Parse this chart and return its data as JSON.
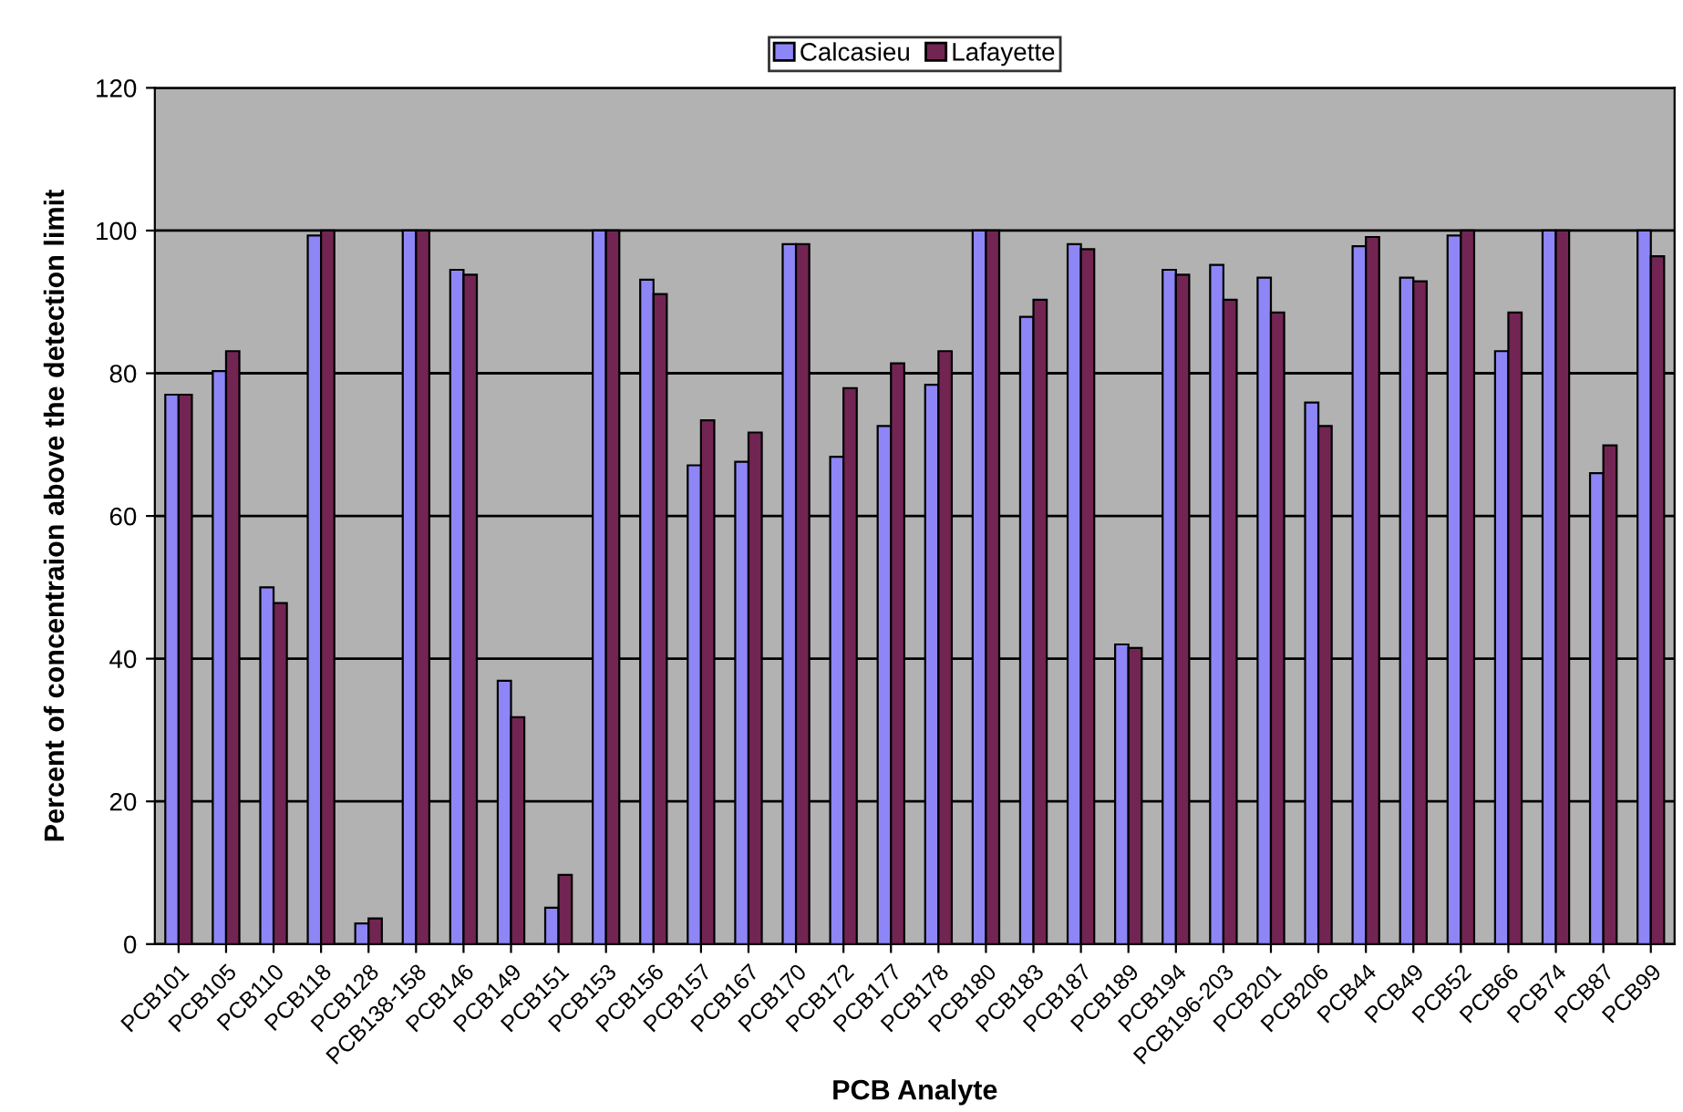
{
  "chart_data": {
    "type": "bar",
    "xlabel": "PCB Analyte",
    "ylabel": "Percent of concentraion above the detection limit",
    "categories": [
      "PCB101",
      "PCB105",
      "PCB110",
      "PCB118",
      "PCB128",
      "PCB138-158",
      "PCB146",
      "PCB149",
      "PCB151",
      "PCB153",
      "PCB156",
      "PCB157",
      "PCB167",
      "PCB170",
      "PCB172",
      "PCB177",
      "PCB178",
      "PCB180",
      "PCB183",
      "PCB187",
      "PCB189",
      "PCB194",
      "PCB196-203",
      "PCB201",
      "PCB206",
      "PCB44",
      "PCB49",
      "PCB52",
      "PCB66",
      "PCB74",
      "PCB87",
      "PCB99"
    ],
    "series": [
      {
        "name": "Calcasieu",
        "color": "#8e86f6",
        "values": [
          77.0,
          80.3,
          50.0,
          99.3,
          2.9,
          100,
          94.5,
          36.9,
          5.1,
          100,
          93.1,
          67.1,
          67.6,
          98.1,
          68.3,
          72.6,
          78.4,
          100,
          87.9,
          98.1,
          42.0,
          94.5,
          95.2,
          93.4,
          75.9,
          97.8,
          93.4,
          99.3,
          83.1,
          100,
          66.0,
          100
        ]
      },
      {
        "name": "Lafayette",
        "color": "#722552",
        "values": [
          77.0,
          83.1,
          47.8,
          100,
          3.6,
          100,
          93.8,
          31.8,
          9.7,
          100,
          91.1,
          73.4,
          71.7,
          98.1,
          77.9,
          81.4,
          83.1,
          100,
          90.3,
          97.4,
          41.5,
          93.8,
          90.3,
          88.5,
          72.6,
          99.1,
          92.9,
          100,
          88.5,
          100,
          69.9,
          96.4
        ]
      }
    ],
    "ylim": [
      0,
      120
    ],
    "yticks": [
      0,
      20,
      40,
      60,
      80,
      100,
      120
    ],
    "grid": "y",
    "legend": "top"
  }
}
